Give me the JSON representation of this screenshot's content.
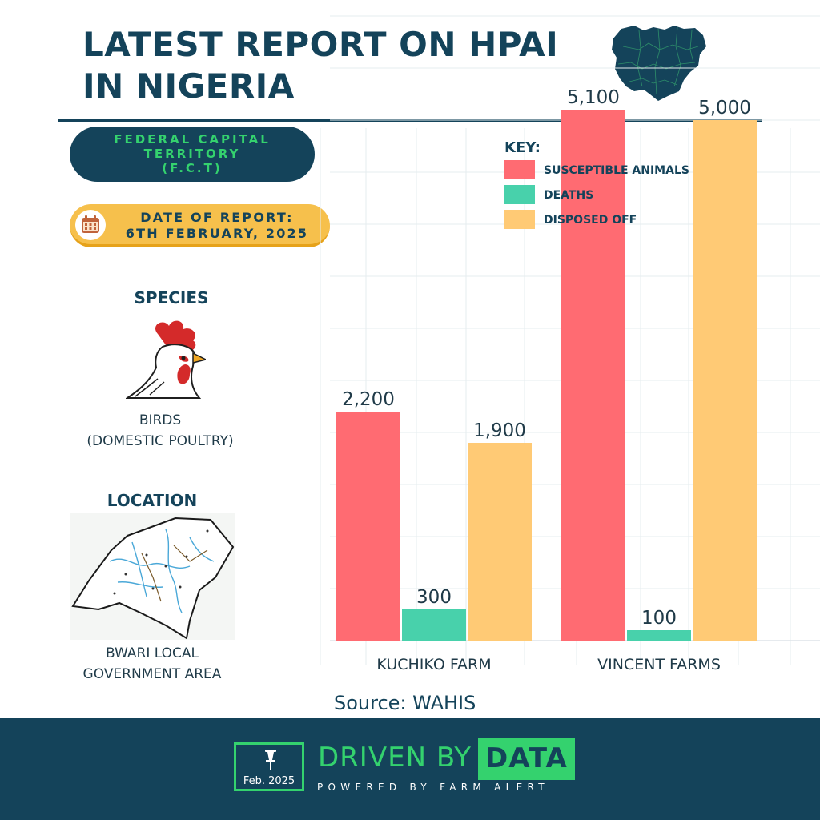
{
  "header": {
    "title_line1": "LATEST REPORT ON HPAI",
    "title_line2": "IN NIGERIA"
  },
  "region": {
    "line1": "FEDERAL CAPITAL",
    "line2": "TERRITORY",
    "line3": "(F.C.T)"
  },
  "report_date": {
    "line1": "DATE OF REPORT:",
    "line2": "6TH FEBRUARY, 2025"
  },
  "species": {
    "heading": "SPECIES",
    "caption_line1": "BIRDS",
    "caption_line2": "(DOMESTIC POULTRY)"
  },
  "location": {
    "heading": "LOCATION",
    "caption_line1": "BWARI LOCAL",
    "caption_line2": "GOVERNMENT AREA"
  },
  "chart_data": {
    "type": "bar",
    "categories": [
      "KUCHIKO FARM",
      "VINCENT FARMS"
    ],
    "series": [
      {
        "name": "SUSCEPTIBLE ANIMALS",
        "values": [
          2200,
          5100
        ],
        "labels": [
          "2,200",
          "5,100"
        ],
        "color": "#ff6b72"
      },
      {
        "name": "DEATHS",
        "values": [
          300,
          100
        ],
        "labels": [
          "300",
          "100"
        ],
        "color": "#48d1ab"
      },
      {
        "name": "DISPOSED OFF",
        "values": [
          1900,
          5000
        ],
        "labels": [
          "1,900",
          "5,000"
        ],
        "color": "#ffca75"
      }
    ],
    "legend_title": "KEY:",
    "legend_position": "top-right",
    "ylim": [
      0,
      6000
    ],
    "grid": true
  },
  "source": "Source: WAHIS",
  "footer": {
    "stamp_text": "Feb. 2025",
    "brand_prefix": "DRIVEN BY",
    "brand_highlight": "DATA",
    "tagline": "POWERED BY FARM ALERT"
  },
  "colors": {
    "navy": "#14435a",
    "green": "#34d26e",
    "badge_yellow": "#f6c04c"
  },
  "icons": [
    "nigeria-map",
    "calendar-icon",
    "rooster-icon",
    "location-map",
    "pin-icon"
  ]
}
